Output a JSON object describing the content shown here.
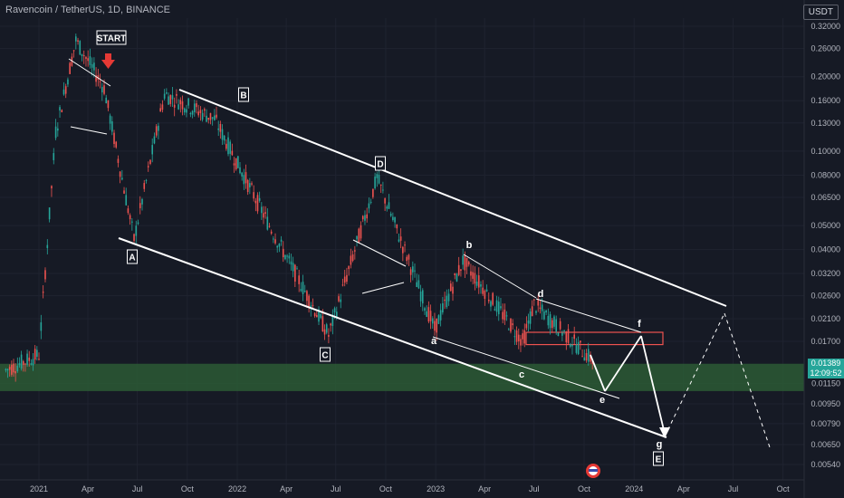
{
  "header": {
    "symbol_line": "Ravencoin / TetherUS, 1D, BINANCE",
    "currency": "USDT"
  },
  "price_tag": {
    "price": "0.01389",
    "countdown": "12:09:52"
  },
  "chart_data": {
    "type": "candlestick",
    "title": "Ravencoin / TetherUS, 1D, BINANCE",
    "yscale": "log",
    "y_tick_labels": [
      "0.32000",
      "0.26000",
      "0.20000",
      "0.16000",
      "0.13000",
      "0.10000",
      "0.08000",
      "0.06500",
      "0.05000",
      "0.04000",
      "0.03200",
      "0.02600",
      "0.02100",
      "0.01700",
      "0.01389",
      "0.01150",
      "0.00950",
      "0.00790",
      "0.00650",
      "0.00540"
    ],
    "x_tick_labels": [
      "2021",
      "Apr",
      "Jul",
      "Oct",
      "2022",
      "Apr",
      "Jul",
      "Oct",
      "2023",
      "Apr",
      "Jul",
      "Oct",
      "2024",
      "Apr",
      "Jul",
      "Oct"
    ],
    "price_path_approx": [
      {
        "date": "2020-11-01",
        "price": 0.013
      },
      {
        "date": "2021-01-01",
        "price": 0.015
      },
      {
        "date": "2021-02-01",
        "price": 0.12
      },
      {
        "date": "2021-03-10",
        "price": 0.28
      },
      {
        "date": "2021-05-01",
        "price": 0.18
      },
      {
        "date": "2021-06-25",
        "price": 0.044
      },
      {
        "date": "2021-08-20",
        "price": 0.17
      },
      {
        "date": "2021-11-20",
        "price": 0.135
      },
      {
        "date": "2022-03-01",
        "price": 0.05
      },
      {
        "date": "2022-06-18",
        "price": 0.018
      },
      {
        "date": "2022-09-15",
        "price": 0.078
      },
      {
        "date": "2022-12-30",
        "price": 0.019
      },
      {
        "date": "2023-02-20",
        "price": 0.036
      },
      {
        "date": "2023-06-10",
        "price": 0.017
      },
      {
        "date": "2023-07-01",
        "price": 0.024
      },
      {
        "date": "2023-10-20",
        "price": 0.014
      }
    ],
    "wave_labels": [
      "START",
      "A",
      "B",
      "C",
      "D",
      "E",
      "a",
      "b",
      "c",
      "d",
      "e",
      "f",
      "g"
    ],
    "support_zone_price_range": [
      0.0107,
      0.0138
    ],
    "resistance_box_price_range": [
      0.0165,
      0.0185
    ],
    "last_price": 0.01389
  },
  "colors": {
    "background": "#161a25",
    "up_candle": "#26a69a",
    "down_candle": "#ef5350",
    "support_zone": "#2c5a35",
    "lines": "#ffffff",
    "start_arrow": "#e53935",
    "price_tag": "#26a69a"
  }
}
